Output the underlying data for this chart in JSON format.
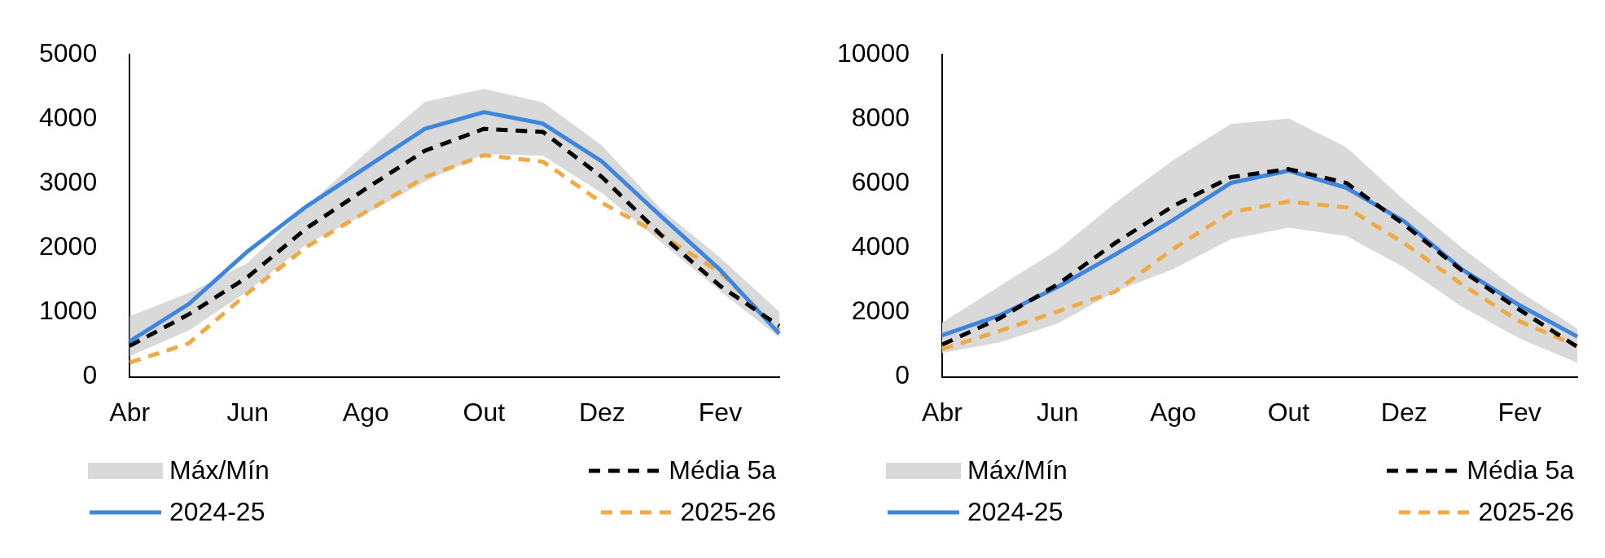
{
  "chart_data": [
    {
      "type": "line",
      "categories": [
        "Abr",
        null,
        "Jun",
        null,
        "Ago",
        null,
        "Out",
        null,
        "Dez",
        null,
        "Fev",
        null
      ],
      "ylim": [
        0,
        5000
      ],
      "yticks": [
        0,
        1000,
        2000,
        3000,
        4000,
        5000
      ],
      "grid": false,
      "legend": "bottom",
      "series": [
        {
          "name": "Máx/Mín",
          "type": "area",
          "color": "#d9d9d9",
          "values": [
            null,
            null,
            null,
            null,
            null,
            null,
            null,
            null,
            null,
            null,
            null,
            null
          ],
          "lower": [
            320,
            720,
            1330,
            2060,
            2530,
            3030,
            3460,
            3430,
            2850,
            2090,
            1330,
            610
          ],
          "upper": [
            940,
            1300,
            1770,
            2650,
            3480,
            4270,
            4470,
            4260,
            3590,
            2600,
            1850,
            1010
          ]
        },
        {
          "name": "Média 5a",
          "color": "#000000",
          "line_style": "dashed",
          "values": [
            480,
            970,
            1550,
            2310,
            2920,
            3510,
            3850,
            3800,
            3100,
            2200,
            1410,
            790
          ]
        },
        {
          "name": "2024-25",
          "color": "#3d85de",
          "line_style": "solid",
          "values": [
            550,
            1130,
            1950,
            2650,
            3250,
            3850,
            4110,
            3930,
            3340,
            2490,
            1660,
            670
          ]
        },
        {
          "name": "2025-26",
          "color": "#f0aa45",
          "line_style": "dashed",
          "values": [
            220,
            520,
            1300,
            2020,
            2560,
            3100,
            3440,
            3340,
            2700,
            2200,
            1620,
            720
          ]
        }
      ]
    },
    {
      "type": "line",
      "categories": [
        "Abr",
        null,
        "Jun",
        null,
        "Ago",
        null,
        "Out",
        null,
        "Dez",
        null,
        "Fev",
        null
      ],
      "ylim": [
        0,
        10000
      ],
      "yticks": [
        0,
        2000,
        4000,
        6000,
        8000,
        10000
      ],
      "grid": false,
      "legend": "bottom",
      "series": [
        {
          "name": "Máx/Mín",
          "type": "area",
          "color": "#d9d9d9",
          "values": [
            null,
            null,
            null,
            null,
            null,
            null,
            null,
            null,
            null,
            null,
            null,
            null
          ],
          "lower": [
            740,
            1070,
            1650,
            2650,
            3340,
            4270,
            4630,
            4370,
            3400,
            2180,
            1190,
            430
          ],
          "upper": [
            1680,
            2820,
            3940,
            5400,
            6730,
            7850,
            8020,
            7130,
            5490,
            4010,
            2650,
            1500
          ]
        },
        {
          "name": "Média 5a",
          "color": "#000000",
          "line_style": "dashed",
          "values": [
            1000,
            1820,
            2870,
            4160,
            5300,
            6200,
            6450,
            6020,
            4730,
            3300,
            2080,
            930
          ]
        },
        {
          "name": "2024-25",
          "color": "#3d85de",
          "line_style": "solid",
          "values": [
            1290,
            1910,
            2790,
            3800,
            4870,
            6020,
            6400,
            5870,
            4830,
            3340,
            2220,
            1250
          ]
        },
        {
          "name": "2025-26",
          "color": "#f0aa45",
          "line_style": "dashed",
          "values": [
            860,
            1430,
            2030,
            2650,
            3970,
            5110,
            5440,
            5260,
            4150,
            2870,
            1720,
            960
          ]
        }
      ]
    }
  ]
}
